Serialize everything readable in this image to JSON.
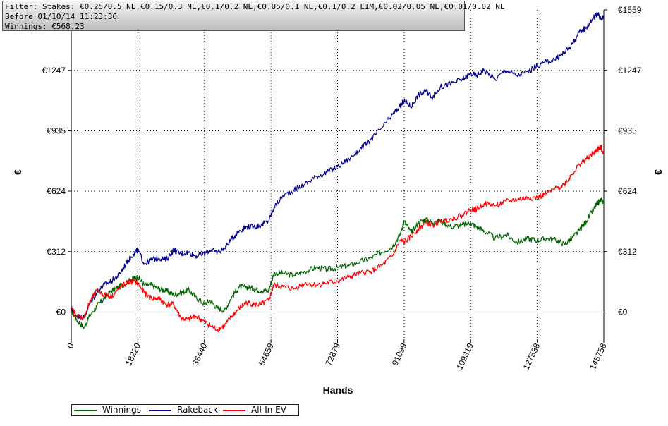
{
  "filter_box": {
    "line1": "Filter: Stakes: €0.25/0.5 NL,€0.15/0.3 NL,€0.1/0.2 NL,€0.05/0.1 NL,€0.1/0.2 LIM,€0.02/0.05 NL,€0.01/0.02 NL",
    "line2": "Before 01/10/14 11:23:36",
    "line3": "Winnings: €568.23"
  },
  "legend": [
    {
      "label": "Winnings",
      "color": "#006400"
    },
    {
      "label": "Rakeback",
      "color": "#00008b"
    },
    {
      "label": "All-In EV",
      "color": "#ff0000"
    }
  ],
  "chart_data": {
    "type": "line",
    "xlabel": "Hands",
    "ylabel": "€",
    "xlim": [
      0,
      145758
    ],
    "ylim": [
      -140,
      1559
    ],
    "x_ticks": [
      0,
      18220,
      36440,
      54659,
      72879,
      91099,
      109319,
      127538,
      145758
    ],
    "x_tick_labels": [
      "0",
      "18220",
      "36440",
      "54659",
      "72879",
      "91099",
      "109319",
      "127538",
      "145758"
    ],
    "y_ticks": [
      0,
      312,
      624,
      935,
      1247,
      1559
    ],
    "y_tick_labels": [
      "€0",
      "€312",
      "€624",
      "€935",
      "€1247",
      "€1559"
    ],
    "grid": true,
    "series": [
      {
        "name": "Winnings",
        "color": "#006400",
        "x": [
          0,
          1500,
          3500,
          5000,
          7000,
          9000,
          11000,
          13000,
          15000,
          17000,
          18220,
          20000,
          22000,
          24000,
          26000,
          28000,
          30000,
          32000,
          34000,
          36440,
          38000,
          40000,
          42000,
          44000,
          46000,
          48000,
          50000,
          52000,
          54000,
          55500,
          58000,
          61000,
          64000,
          67000,
          70000,
          72879,
          76000,
          79000,
          82000,
          85000,
          88000,
          90000,
          91099,
          93000,
          95000,
          97000,
          99000,
          101000,
          104000,
          107000,
          109319,
          111000,
          113000,
          116000,
          119000,
          122000,
          125000,
          127538,
          130000,
          133000,
          135000,
          137000,
          139000,
          141000,
          143000,
          144000,
          145000,
          145758
        ],
        "values": [
          10,
          -40,
          -80,
          -20,
          30,
          70,
          110,
          130,
          150,
          175,
          180,
          140,
          140,
          120,
          110,
          90,
          100,
          115,
          80,
          40,
          60,
          20,
          10,
          80,
          130,
          130,
          120,
          110,
          110,
          200,
          200,
          190,
          210,
          230,
          220,
          230,
          240,
          260,
          280,
          310,
          340,
          400,
          470,
          410,
          460,
          480,
          460,
          470,
          440,
          450,
          460,
          440,
          420,
          380,
          400,
          360,
          380,
          370,
          380,
          370,
          350,
          380,
          420,
          470,
          530,
          560,
          580,
          568
        ]
      },
      {
        "name": "Rakeback",
        "color": "#00008b",
        "x": [
          0,
          1500,
          3500,
          5000,
          7000,
          9000,
          11000,
          13000,
          15000,
          17000,
          18220,
          20000,
          22000,
          24000,
          26000,
          28000,
          30000,
          32000,
          34000,
          36440,
          38000,
          40000,
          42000,
          44000,
          46000,
          48000,
          50000,
          52000,
          54000,
          55500,
          58000,
          61000,
          64000,
          67000,
          70000,
          72879,
          76000,
          79000,
          82000,
          85000,
          88000,
          90000,
          91099,
          93000,
          95000,
          97000,
          99000,
          101000,
          104000,
          107000,
          109319,
          111000,
          113000,
          116000,
          119000,
          122000,
          125000,
          127538,
          130000,
          133000,
          135000,
          137000,
          139000,
          141000,
          143000,
          144000,
          145000,
          145758
        ],
        "values": [
          20,
          -20,
          -30,
          40,
          100,
          140,
          160,
          190,
          250,
          300,
          320,
          250,
          270,
          280,
          270,
          320,
          300,
          310,
          290,
          300,
          320,
          310,
          330,
          380,
          420,
          440,
          440,
          450,
          470,
          540,
          600,
          630,
          660,
          700,
          720,
          750,
          790,
          840,
          890,
          950,
          1020,
          1060,
          1090,
          1060,
          1120,
          1140,
          1110,
          1160,
          1180,
          1200,
          1230,
          1220,
          1250,
          1200,
          1250,
          1220,
          1240,
          1270,
          1290,
          1310,
          1340,
          1380,
          1440,
          1470,
          1520,
          1540,
          1510,
          1530
        ]
      },
      {
        "name": "All-In EV",
        "color": "#ff0000",
        "x": [
          0,
          1500,
          3500,
          5000,
          7000,
          9000,
          11000,
          13000,
          15000,
          17000,
          18220,
          20000,
          22000,
          24000,
          26000,
          28000,
          30000,
          32000,
          34000,
          36440,
          38000,
          40000,
          42000,
          44000,
          46000,
          48000,
          50000,
          52000,
          54000,
          55500,
          58000,
          61000,
          64000,
          67000,
          70000,
          72879,
          76000,
          79000,
          82000,
          85000,
          88000,
          90000,
          91099,
          93000,
          95000,
          97000,
          99000,
          101000,
          104000,
          107000,
          109319,
          111000,
          113000,
          116000,
          119000,
          122000,
          125000,
          127538,
          130000,
          133000,
          135000,
          137000,
          139000,
          141000,
          143000,
          144000,
          145000,
          145758
        ],
        "values": [
          20,
          -20,
          -30,
          50,
          110,
          90,
          80,
          120,
          150,
          160,
          150,
          100,
          70,
          70,
          40,
          40,
          -30,
          -40,
          -20,
          -50,
          -70,
          -90,
          -70,
          -20,
          20,
          50,
          40,
          40,
          60,
          140,
          130,
          120,
          150,
          140,
          150,
          160,
          180,
          200,
          210,
          240,
          290,
          370,
          360,
          390,
          430,
          460,
          450,
          470,
          480,
          500,
          530,
          530,
          560,
          550,
          570,
          580,
          590,
          590,
          610,
          640,
          660,
          710,
          760,
          790,
          820,
          840,
          850,
          810
        ]
      }
    ]
  }
}
